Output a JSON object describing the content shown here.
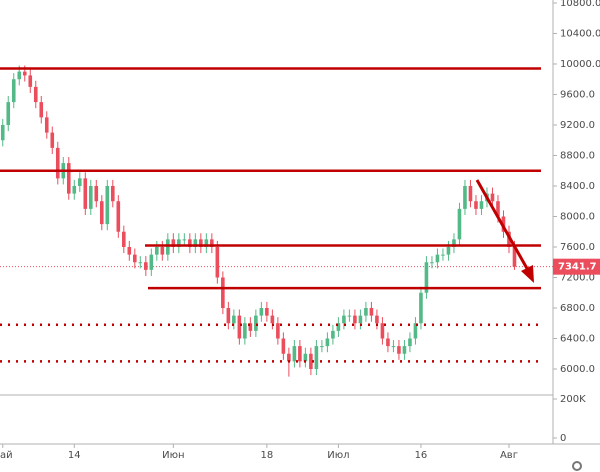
{
  "chart_data": {
    "type": "candlestick",
    "xticks": [
      {
        "value": 0,
        "label": "ай"
      },
      {
        "value": 13,
        "label": "14"
      },
      {
        "value": 31,
        "label": "Июн"
      },
      {
        "value": 48,
        "label": "18"
      },
      {
        "value": 61,
        "label": "Июл"
      },
      {
        "value": 76,
        "label": "16"
      },
      {
        "value": 92,
        "label": "Авг"
      }
    ],
    "xlim": [
      -0.5,
      100
    ],
    "ylim": [
      5659,
      10839
    ],
    "yticks": [
      {
        "value": 6000,
        "label": "6000.0"
      },
      {
        "value": 6400,
        "label": "6400.0"
      },
      {
        "value": 6800,
        "label": "6800.0"
      },
      {
        "value": 7200,
        "label": "7200.0"
      },
      {
        "value": 7600,
        "label": "7600.0"
      },
      {
        "value": 8000,
        "label": "8000.0"
      },
      {
        "value": 8400,
        "label": "8400.0"
      },
      {
        "value": 8800,
        "label": "8800.0"
      },
      {
        "value": 9200,
        "label": "9200.0"
      },
      {
        "value": 9600,
        "label": "9600.0"
      },
      {
        "value": 10000,
        "label": "10000.0"
      },
      {
        "value": 10400,
        "label": "10400.0"
      },
      {
        "value": 10800,
        "label": "10800.0"
      }
    ],
    "volume_ticks": [
      {
        "value": 200000,
        "label": "200K"
      },
      0
    ],
    "up_color": "#53b987",
    "down_color": "#eb4d5c",
    "level_color": "#c00000",
    "levels": [
      9940,
      8600,
      7620,
      7060
    ],
    "dotted_levels": [
      6580,
      6100
    ],
    "candles": [
      [
        9000,
        9280,
        8920,
        9200
      ],
      [
        9200,
        9580,
        9120,
        9500
      ],
      [
        9500,
        9880,
        9420,
        9800
      ],
      [
        9800,
        9980,
        9720,
        9900
      ],
      [
        9900,
        9980,
        9770,
        9850
      ],
      [
        9850,
        9930,
        9620,
        9700
      ],
      [
        9700,
        9780,
        9420,
        9500
      ],
      [
        9500,
        9580,
        9220,
        9300
      ],
      [
        9300,
        9380,
        9020,
        9100
      ],
      [
        9100,
        9180,
        8820,
        8900
      ],
      [
        8900,
        8980,
        8420,
        8500
      ],
      [
        8500,
        8780,
        8420,
        8700
      ],
      [
        8700,
        8780,
        8220,
        8300
      ],
      [
        8300,
        8480,
        8220,
        8400
      ],
      [
        8400,
        8580,
        8320,
        8500
      ],
      [
        8500,
        8580,
        8020,
        8100
      ],
      [
        8100,
        8480,
        8020,
        8400
      ],
      [
        8400,
        8480,
        8120,
        8200
      ],
      [
        8200,
        8280,
        7820,
        7900
      ],
      [
        7900,
        8480,
        7820,
        8400
      ],
      [
        8400,
        8480,
        8120,
        8200
      ],
      [
        8200,
        8280,
        7720,
        7800
      ],
      [
        7800,
        7880,
        7520,
        7600
      ],
      [
        7600,
        7680,
        7420,
        7500
      ],
      [
        7500,
        7580,
        7320,
        7400
      ],
      [
        7400,
        7480,
        7320,
        7400
      ],
      [
        7400,
        7480,
        7220,
        7300
      ],
      [
        7300,
        7580,
        7220,
        7500
      ],
      [
        7500,
        7680,
        7420,
        7600
      ],
      [
        7600,
        7680,
        7420,
        7500
      ],
      [
        7500,
        7780,
        7420,
        7700
      ],
      [
        7700,
        7780,
        7520,
        7600
      ],
      [
        7600,
        7780,
        7520,
        7700
      ],
      [
        7700,
        7780,
        7620,
        7700
      ],
      [
        7700,
        7780,
        7520,
        7600
      ],
      [
        7600,
        7780,
        7520,
        7700
      ],
      [
        7700,
        7780,
        7520,
        7600
      ],
      [
        7600,
        7780,
        7520,
        7700
      ],
      [
        7700,
        7780,
        7520,
        7600
      ],
      [
        7600,
        7680,
        7120,
        7200
      ],
      [
        7200,
        7280,
        6720,
        6800
      ],
      [
        6800,
        6880,
        6520,
        6600
      ],
      [
        6600,
        6780,
        6520,
        6700
      ],
      [
        6700,
        6780,
        6320,
        6400
      ],
      [
        6400,
        6680,
        6320,
        6600
      ],
      [
        6600,
        6680,
        6420,
        6500
      ],
      [
        6500,
        6780,
        6420,
        6700
      ],
      [
        6700,
        6880,
        6620,
        6800
      ],
      [
        6800,
        6880,
        6620,
        6700
      ],
      [
        6700,
        6780,
        6520,
        6600
      ],
      [
        6600,
        6680,
        6320,
        6400
      ],
      [
        6400,
        6480,
        6120,
        6200
      ],
      [
        6200,
        6280,
        5900,
        6100
      ],
      [
        6100,
        6380,
        6020,
        6300
      ],
      [
        6300,
        6380,
        6020,
        6100
      ],
      [
        6100,
        6280,
        6020,
        6200
      ],
      [
        6200,
        6280,
        5920,
        6000
      ],
      [
        6000,
        6380,
        5920,
        6300
      ],
      [
        6300,
        6380,
        6220,
        6300
      ],
      [
        6300,
        6480,
        6220,
        6400
      ],
      [
        6400,
        6580,
        6320,
        6500
      ],
      [
        6500,
        6680,
        6420,
        6600
      ],
      [
        6600,
        6780,
        6520,
        6700
      ],
      [
        6700,
        6780,
        6620,
        6700
      ],
      [
        6700,
        6780,
        6520,
        6600
      ],
      [
        6600,
        6780,
        6520,
        6700
      ],
      [
        6700,
        6880,
        6620,
        6800
      ],
      [
        6800,
        6880,
        6620,
        6700
      ],
      [
        6700,
        6780,
        6520,
        6600
      ],
      [
        6600,
        6680,
        6320,
        6400
      ],
      [
        6400,
        6480,
        6220,
        6300
      ],
      [
        6300,
        6380,
        6220,
        6300
      ],
      [
        6300,
        6380,
        6120,
        6200
      ],
      [
        6200,
        6380,
        6120,
        6300
      ],
      [
        6300,
        6480,
        6220,
        6400
      ],
      [
        6400,
        6680,
        6320,
        6600
      ],
      [
        6600,
        7080,
        6520,
        7000
      ],
      [
        7000,
        7480,
        6920,
        7400
      ],
      [
        7400,
        7480,
        7320,
        7400
      ],
      [
        7400,
        7580,
        7320,
        7500
      ],
      [
        7500,
        7580,
        7420,
        7500
      ],
      [
        7500,
        7680,
        7420,
        7600
      ],
      [
        7600,
        7780,
        7520,
        7700
      ],
      [
        7700,
        8180,
        7620,
        8100
      ],
      [
        8100,
        8480,
        8020,
        8400
      ],
      [
        8400,
        8480,
        8120,
        8200
      ],
      [
        8200,
        8280,
        8020,
        8100
      ],
      [
        8100,
        8280,
        8020,
        8200
      ],
      [
        8200,
        8380,
        8120,
        8300
      ],
      [
        8300,
        8380,
        8120,
        8200
      ],
      [
        8200,
        8280,
        7920,
        8000
      ],
      [
        8000,
        8080,
        7720,
        7800
      ],
      [
        7800,
        7880,
        7520,
        7600
      ],
      [
        7600,
        7680,
        7300,
        7341.7
      ]
    ]
  }
}
